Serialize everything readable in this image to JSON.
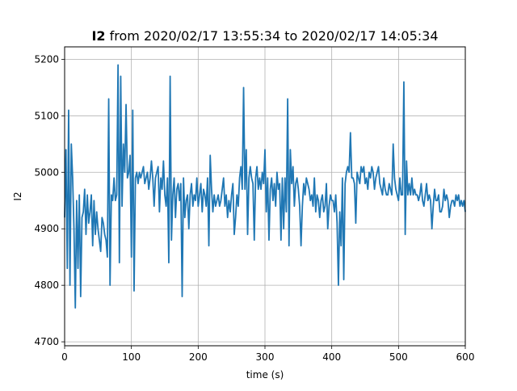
{
  "chart_data": {
    "type": "line",
    "title_bold": "I2",
    "title_rest": " from 2020/02/17 13:55:34 to 2020/02/17 14:05:34",
    "xlabel": "time (s)",
    "ylabel": "I2",
    "xlim": [
      0,
      600
    ],
    "ylim": [
      4693,
      5222
    ],
    "xticks": [
      0,
      100,
      200,
      300,
      400,
      500,
      600
    ],
    "yticks": [
      4700,
      4800,
      4900,
      5000,
      5100,
      5200
    ],
    "grid": true,
    "line_color": "#1f77b4",
    "series": [
      {
        "x": [
          0,
          2,
          4,
          6,
          8,
          10,
          12,
          14,
          16,
          18,
          20,
          22,
          24,
          26,
          28,
          30,
          32,
          34,
          36,
          38,
          40,
          42,
          44,
          46,
          48,
          50,
          52,
          54,
          56,
          58,
          60,
          62,
          64,
          66,
          68,
          70,
          72,
          74,
          76,
          78,
          80,
          82,
          84,
          86,
          88,
          90,
          92,
          94,
          96,
          98,
          100,
          102,
          104,
          106,
          108,
          110,
          112,
          114,
          116,
          118,
          120,
          122,
          124,
          126,
          128,
          130,
          132,
          134,
          136,
          138,
          140,
          142,
          144,
          146,
          148,
          150,
          152,
          154,
          156,
          158,
          160,
          162,
          164,
          166,
          168,
          170,
          172,
          174,
          176,
          178,
          180,
          182,
          184,
          186,
          188,
          190,
          192,
          194,
          196,
          198,
          200,
          202,
          204,
          206,
          208,
          210,
          212,
          214,
          216,
          218,
          220,
          222,
          224,
          226,
          228,
          230,
          232,
          234,
          236,
          238,
          240,
          242,
          244,
          246,
          248,
          250,
          252,
          254,
          256,
          258,
          260,
          262,
          264,
          266,
          268,
          270,
          272,
          274,
          276,
          278,
          280,
          282,
          284,
          286,
          288,
          290,
          292,
          294,
          296,
          298,
          300,
          302,
          304,
          306,
          308,
          310,
          312,
          314,
          316,
          318,
          320,
          322,
          324,
          326,
          328,
          330,
          332,
          334,
          336,
          338,
          340,
          342,
          344,
          346,
          348,
          350,
          352,
          354,
          356,
          358,
          360,
          362,
          364,
          366,
          368,
          370,
          372,
          374,
          376,
          378,
          380,
          382,
          384,
          386,
          388,
          390,
          392,
          394,
          396,
          398,
          400,
          402,
          404,
          406,
          408,
          410,
          412,
          414,
          416,
          418,
          420,
          422,
          424,
          426,
          428,
          430,
          432,
          434,
          436,
          438,
          440,
          442,
          444,
          446,
          448,
          450,
          452,
          454,
          456,
          458,
          460,
          462,
          464,
          466,
          468,
          470,
          472,
          474,
          476,
          478,
          480,
          482,
          484,
          486,
          488,
          490,
          492,
          494,
          496,
          498,
          500,
          502,
          504,
          506,
          508,
          510,
          512,
          514,
          516,
          518,
          520,
          522,
          524,
          526,
          528,
          530,
          532,
          534,
          536,
          538,
          540,
          542,
          544,
          546,
          548,
          550,
          552,
          554,
          556,
          558,
          560,
          562,
          564,
          566,
          568,
          570,
          572,
          574,
          576,
          578,
          580,
          582,
          584,
          586,
          588,
          590,
          592,
          594,
          596,
          598,
          600
        ],
        "y": [
          4920,
          5040,
          4830,
          5110,
          4800,
          5050,
          4990,
          4900,
          4760,
          4950,
          4830,
          4960,
          4780,
          4920,
          4930,
          4970,
          4890,
          4960,
          4910,
          4930,
          4960,
          4870,
          4950,
          4890,
          4930,
          4900,
          4880,
          4860,
          4920,
          4910,
          4890,
          4880,
          4850,
          5130,
          4800,
          4960,
          4950,
          4990,
          4950,
          4960,
          5190,
          4840,
          5170,
          4940,
          5050,
          5000,
          5120,
          4990,
          5000,
          5030,
          4850,
          5110,
          4790,
          4990,
          5000,
          4980,
          5000,
          4990,
          5000,
          5010,
          4980,
          4990,
          5000,
          4970,
          4990,
          5020,
          4990,
          4940,
          4990,
          5000,
          5010,
          4930,
          4990,
          4970,
          5020,
          4960,
          4940,
          4990,
          4840,
          5170,
          4880,
          4960,
          4990,
          4920,
          4970,
          4980,
          4950,
          4980,
          4780,
          4990,
          4920,
          4950,
          4960,
          4900,
          4960,
          4980,
          4940,
          4960,
          4950,
          4990,
          4940,
          4960,
          4980,
          4930,
          4970,
          4960,
          4940,
          4990,
          4870,
          5030,
          4970,
          4930,
          4960,
          4940,
          4950,
          4960,
          4940,
          4950,
          4970,
          4990,
          4940,
          4960,
          4920,
          4950,
          4930,
          4960,
          4980,
          4890,
          4920,
          4960,
          4940,
          4990,
          5010,
          4970,
          5150,
          4970,
          5040,
          4890,
          4990,
          5010,
          4990,
          4980,
          4880,
          4990,
          5010,
          4970,
          4990,
          4970,
          5000,
          4980,
          5040,
          4930,
          4990,
          4880,
          4970,
          4990,
          4950,
          4980,
          4940,
          5000,
          4970,
          4980,
          4880,
          4990,
          4900,
          4990,
          4930,
          5130,
          4870,
          5040,
          4980,
          5010,
          4940,
          4980,
          4990,
          4970,
          4940,
          4870,
          4940,
          4980,
          4960,
          4990,
          4980,
          4970,
          4950,
          4960,
          4940,
          4990,
          4930,
          4960,
          4950,
          4920,
          4950,
          4960,
          4930,
          4940,
          4980,
          4900,
          4940,
          4960,
          4950,
          4950,
          4930,
          4960,
          4910,
          4800,
          4930,
          4870,
          4990,
          4810,
          4980,
          5000,
          5010,
          5000,
          5070,
          4990,
          4990,
          4980,
          4910,
          5000,
          4990,
          4980,
          5010,
          5000,
          5010,
          4980,
          4990,
          4970,
          5000,
          4990,
          5010,
          5000,
          4970,
          4990,
          5000,
          5010,
          4980,
          4970,
          4960,
          4990,
          4970,
          4960,
          4960,
          4980,
          4970,
          4960,
          5050,
          4990,
          4970,
          4960,
          4950,
          4990,
          4960,
          4960,
          5160,
          4890,
          5020,
          4960,
          4980,
          4960,
          4990,
          4960,
          4970,
          4960,
          4960,
          4950,
          4960,
          4980,
          4950,
          4940,
          4960,
          4980,
          4950,
          4960,
          4950,
          4900,
          4940,
          4970,
          4950,
          4950,
          4960,
          4930,
          4930,
          4940,
          4970,
          4950,
          4960,
          4950,
          4920,
          4940,
          4950,
          4950,
          4940,
          4960,
          4950,
          4960,
          4940,
          4950,
          4940,
          4950,
          4930
        ]
      }
    ]
  }
}
